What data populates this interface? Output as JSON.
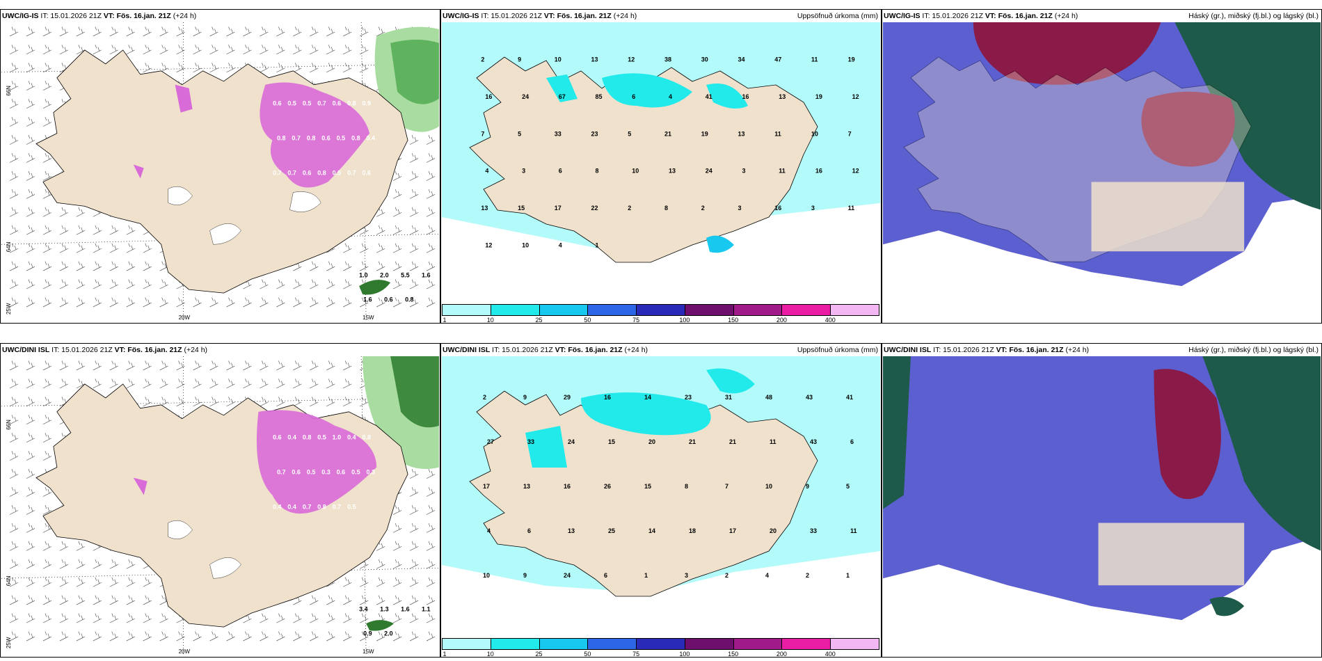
{
  "rows": [
    {
      "model": "UWC/IG-IS",
      "panels": [
        {
          "it": "IT: 15.01.2026 21Z",
          "vt": "VT: Fös. 16.jan. 21Z",
          "lead": "(+24 h)",
          "right": ""
        },
        {
          "it": "IT: 15.01.2026 21Z",
          "vt": "VT: Fös. 16.jan. 21Z",
          "lead": "(+24 h)",
          "right": "Uppsöfnuð úrkoma (mm)"
        },
        {
          "it": "IT: 15.01.2026 21Z",
          "vt": "VT: Fös. 16.jan. 21Z",
          "lead": "(+24 h)",
          "right": "Háský (gr.), miðský (fj.bl.) og lágský (bl.)"
        }
      ],
      "ice_labels": [
        "0.6",
        "0.5",
        "0.5",
        "0.7",
        "0.6",
        "0.8",
        "0.9",
        "0.8",
        "0.7",
        "0.8",
        "0.6",
        "0.5",
        "0.8",
        "0.4",
        "0.7",
        "0.7",
        "0.6",
        "0.8",
        "0.5",
        "0.7",
        "0.6"
      ],
      "sea_labels": [
        "1.0",
        "2.0",
        "5.5",
        "1.6",
        "1.6",
        "0.6",
        "0.8"
      ],
      "precip_labels": [
        "2",
        "9",
        "10",
        "13",
        "12",
        "38",
        "30",
        "34",
        "47",
        "11",
        "19",
        "16",
        "24",
        "67",
        "85",
        "6",
        "4",
        "41",
        "16",
        "13",
        "19",
        "12",
        "7",
        "5",
        "33",
        "23",
        "5",
        "21",
        "19",
        "13",
        "11",
        "10",
        "7",
        "4",
        "3",
        "6",
        "8",
        "10",
        "13",
        "24",
        "3",
        "11",
        "16",
        "12",
        "13",
        "15",
        "17",
        "22",
        "2",
        "8",
        "2",
        "3",
        "16",
        "3",
        "11",
        "12",
        "10",
        "4",
        "1"
      ]
    },
    {
      "model": "UWC/DINI ISL",
      "panels": [
        {
          "it": "IT: 15.01.2026 21Z",
          "vt": "VT: Fös. 16.jan. 21Z",
          "lead": "(+24 h)",
          "right": ""
        },
        {
          "it": "IT: 15.01.2026 21Z",
          "vt": "VT: Fös. 16.jan. 21Z",
          "lead": "(+24 h)",
          "right": "Uppsöfnuð úrkoma (mm)"
        },
        {
          "it": "IT: 15.01.2026 21Z",
          "vt": "VT: Fös. 16.jan. 21Z",
          "lead": "(+24 h)",
          "right": "Háský (gr.), miðský (fj.bl.) og lágský (bl.)"
        }
      ],
      "ice_labels": [
        "0.6",
        "0.4",
        "0.8",
        "0.5",
        "1.0",
        "0.4",
        "0.8",
        "0.7",
        "0.6",
        "0.5",
        "0.3",
        "0.6",
        "0.5",
        "0.3",
        "0.4",
        "0.4",
        "0.7",
        "0.8",
        "0.7",
        "0.5"
      ],
      "sea_labels": [
        "3.4",
        "1.3",
        "1.6",
        "1.1",
        "0.9",
        "2.0"
      ],
      "precip_labels": [
        "2",
        "9",
        "29",
        "16",
        "14",
        "23",
        "31",
        "48",
        "43",
        "41",
        "27",
        "33",
        "24",
        "15",
        "20",
        "21",
        "21",
        "11",
        "43",
        "6",
        "17",
        "13",
        "16",
        "26",
        "15",
        "8",
        "7",
        "10",
        "9",
        "5",
        "4",
        "6",
        "13",
        "25",
        "14",
        "18",
        "17",
        "20",
        "33",
        "11",
        "10",
        "9",
        "24",
        "6",
        "1",
        "3",
        "2",
        "4",
        "2",
        "1"
      ]
    }
  ],
  "axes": {
    "lon_labels": [
      "20W",
      "15W"
    ],
    "lat_labels": [
      "66N",
      "64N",
      "25W"
    ]
  },
  "colorbar": {
    "ticks": [
      "1",
      "10",
      "25",
      "50",
      "75",
      "100",
      "150",
      "200",
      "400"
    ],
    "colors": [
      "#b3fbfb",
      "#23eaea",
      "#18c8ee",
      "#2e66e8",
      "#2a2ab8",
      "#6e0f6e",
      "#a01a8a",
      "#e91ea5",
      "#f3b8f3"
    ]
  },
  "colors": {
    "land": "#efe1cc",
    "ice": "#d96bd9",
    "light_precip": "#b3fbfb",
    "high_cloud": "#5b5fd0",
    "mid_cloud": "#8a1a48",
    "low_cloud": "#1e5a4a"
  }
}
